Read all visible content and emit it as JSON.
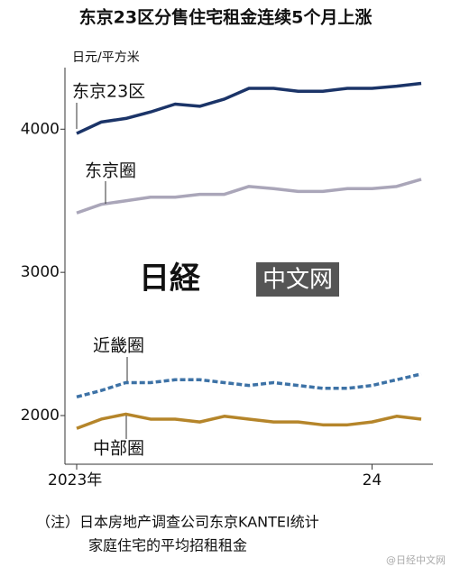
{
  "chart_data": {
    "type": "line",
    "title": "东京23区分售住宅租金连续5个月上涨",
    "y_axis_label": "日元/平方米",
    "categories": [
      "2023年",
      null,
      null,
      null,
      null,
      null,
      null,
      null,
      null,
      null,
      null,
      null,
      "24",
      null,
      null
    ],
    "series": [
      {
        "name": "东京23区",
        "color": "#1b3468",
        "style": "solid",
        "values": [
          3970,
          4050,
          4075,
          4120,
          4175,
          4160,
          4210,
          4285,
          4285,
          4265,
          4265,
          4285,
          4285,
          4300,
          4320
        ]
      },
      {
        "name": "东京圈",
        "color": "#aaa6b9",
        "style": "solid",
        "values": [
          3415,
          3475,
          3500,
          3525,
          3525,
          3545,
          3545,
          3600,
          3585,
          3565,
          3565,
          3585,
          3585,
          3600,
          3650
        ]
      },
      {
        "name": "近畿圈",
        "color": "#3d72a6",
        "style": "dashed",
        "values": [
          2130,
          2175,
          2230,
          2230,
          2250,
          2250,
          2230,
          2210,
          2230,
          2210,
          2190,
          2190,
          2210,
          2250,
          2290
        ]
      },
      {
        "name": "中部圈",
        "color": "#b5852a",
        "style": "solid",
        "values": [
          1910,
          1975,
          2010,
          1975,
          1975,
          1955,
          1995,
          1975,
          1955,
          1955,
          1935,
          1935,
          1955,
          1995,
          1975
        ]
      }
    ],
    "ylim": [
      1660,
      4430
    ],
    "yticks": [
      2000,
      3000,
      4000
    ],
    "note": [
      "（注）日本房地产调查公司东京KANTEI统计",
      "家庭住宅的平均招租租金"
    ],
    "logo": [
      "日経",
      "中文网"
    ],
    "credit": "@日经中文网"
  }
}
